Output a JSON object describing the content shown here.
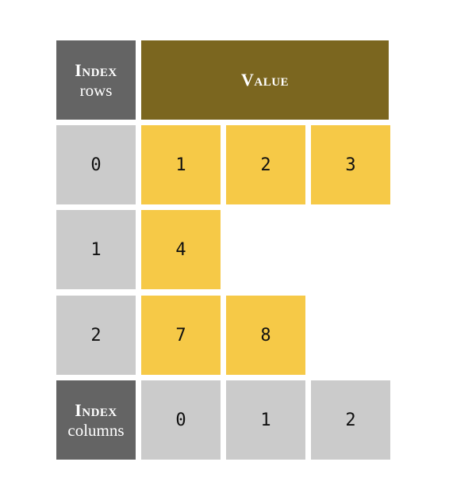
{
  "header": {
    "index_rows_title": "Index",
    "index_rows_sub": "rows",
    "value_title": "Value"
  },
  "rows": [
    {
      "index": "0",
      "values": [
        "1",
        "2",
        "3"
      ]
    },
    {
      "index": "1",
      "values": [
        "4"
      ]
    },
    {
      "index": "2",
      "values": [
        "7",
        "8"
      ]
    }
  ],
  "footer": {
    "index_columns_title": "Index",
    "index_columns_sub": "columns",
    "column_indices": [
      "0",
      "1",
      "2"
    ]
  },
  "colors": {
    "header_dark": "#646464",
    "value_header": "#7b661f",
    "index_cell": "#cbcbcb",
    "value_cell": "#f6c947"
  }
}
